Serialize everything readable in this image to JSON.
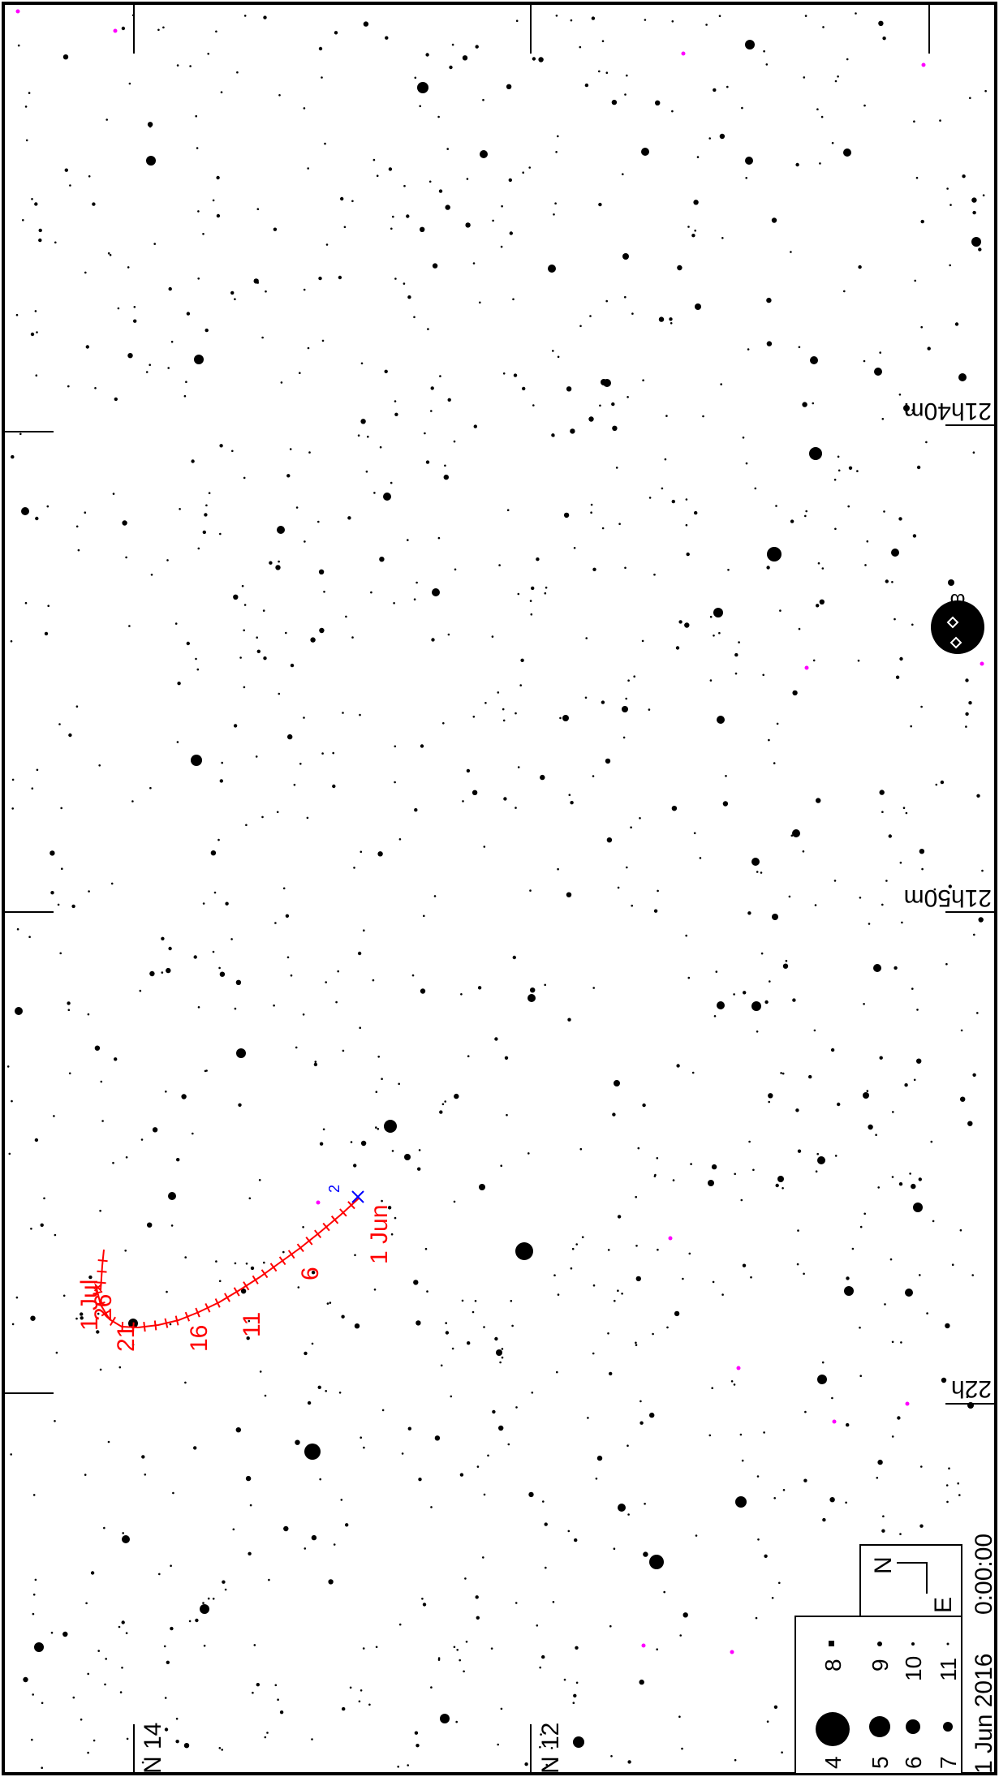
{
  "colors": {
    "background": "#ffffff",
    "stars": "#000000",
    "path": "#ff0000",
    "marker": "#0000ff",
    "galaxy": "#ff00ff"
  },
  "ra_labels": [
    "21h40m",
    "21h50m",
    "22h"
  ],
  "dec_labels": [
    "N 14",
    "N 12"
  ],
  "star_labels": {
    "omega": "ω"
  },
  "path_labels": [
    "1 Jun",
    "6",
    "11",
    "16",
    "21",
    "26",
    "1 Jul"
  ],
  "marker_label": "2",
  "compass": {
    "north": "N",
    "east": "E"
  },
  "legend": {
    "magnitudes": [
      "4",
      "5",
      "6",
      "7",
      "8",
      "9",
      "10",
      "11"
    ]
  },
  "footer": {
    "date": "1 Jun 2016",
    "time": "0:00:00"
  }
}
